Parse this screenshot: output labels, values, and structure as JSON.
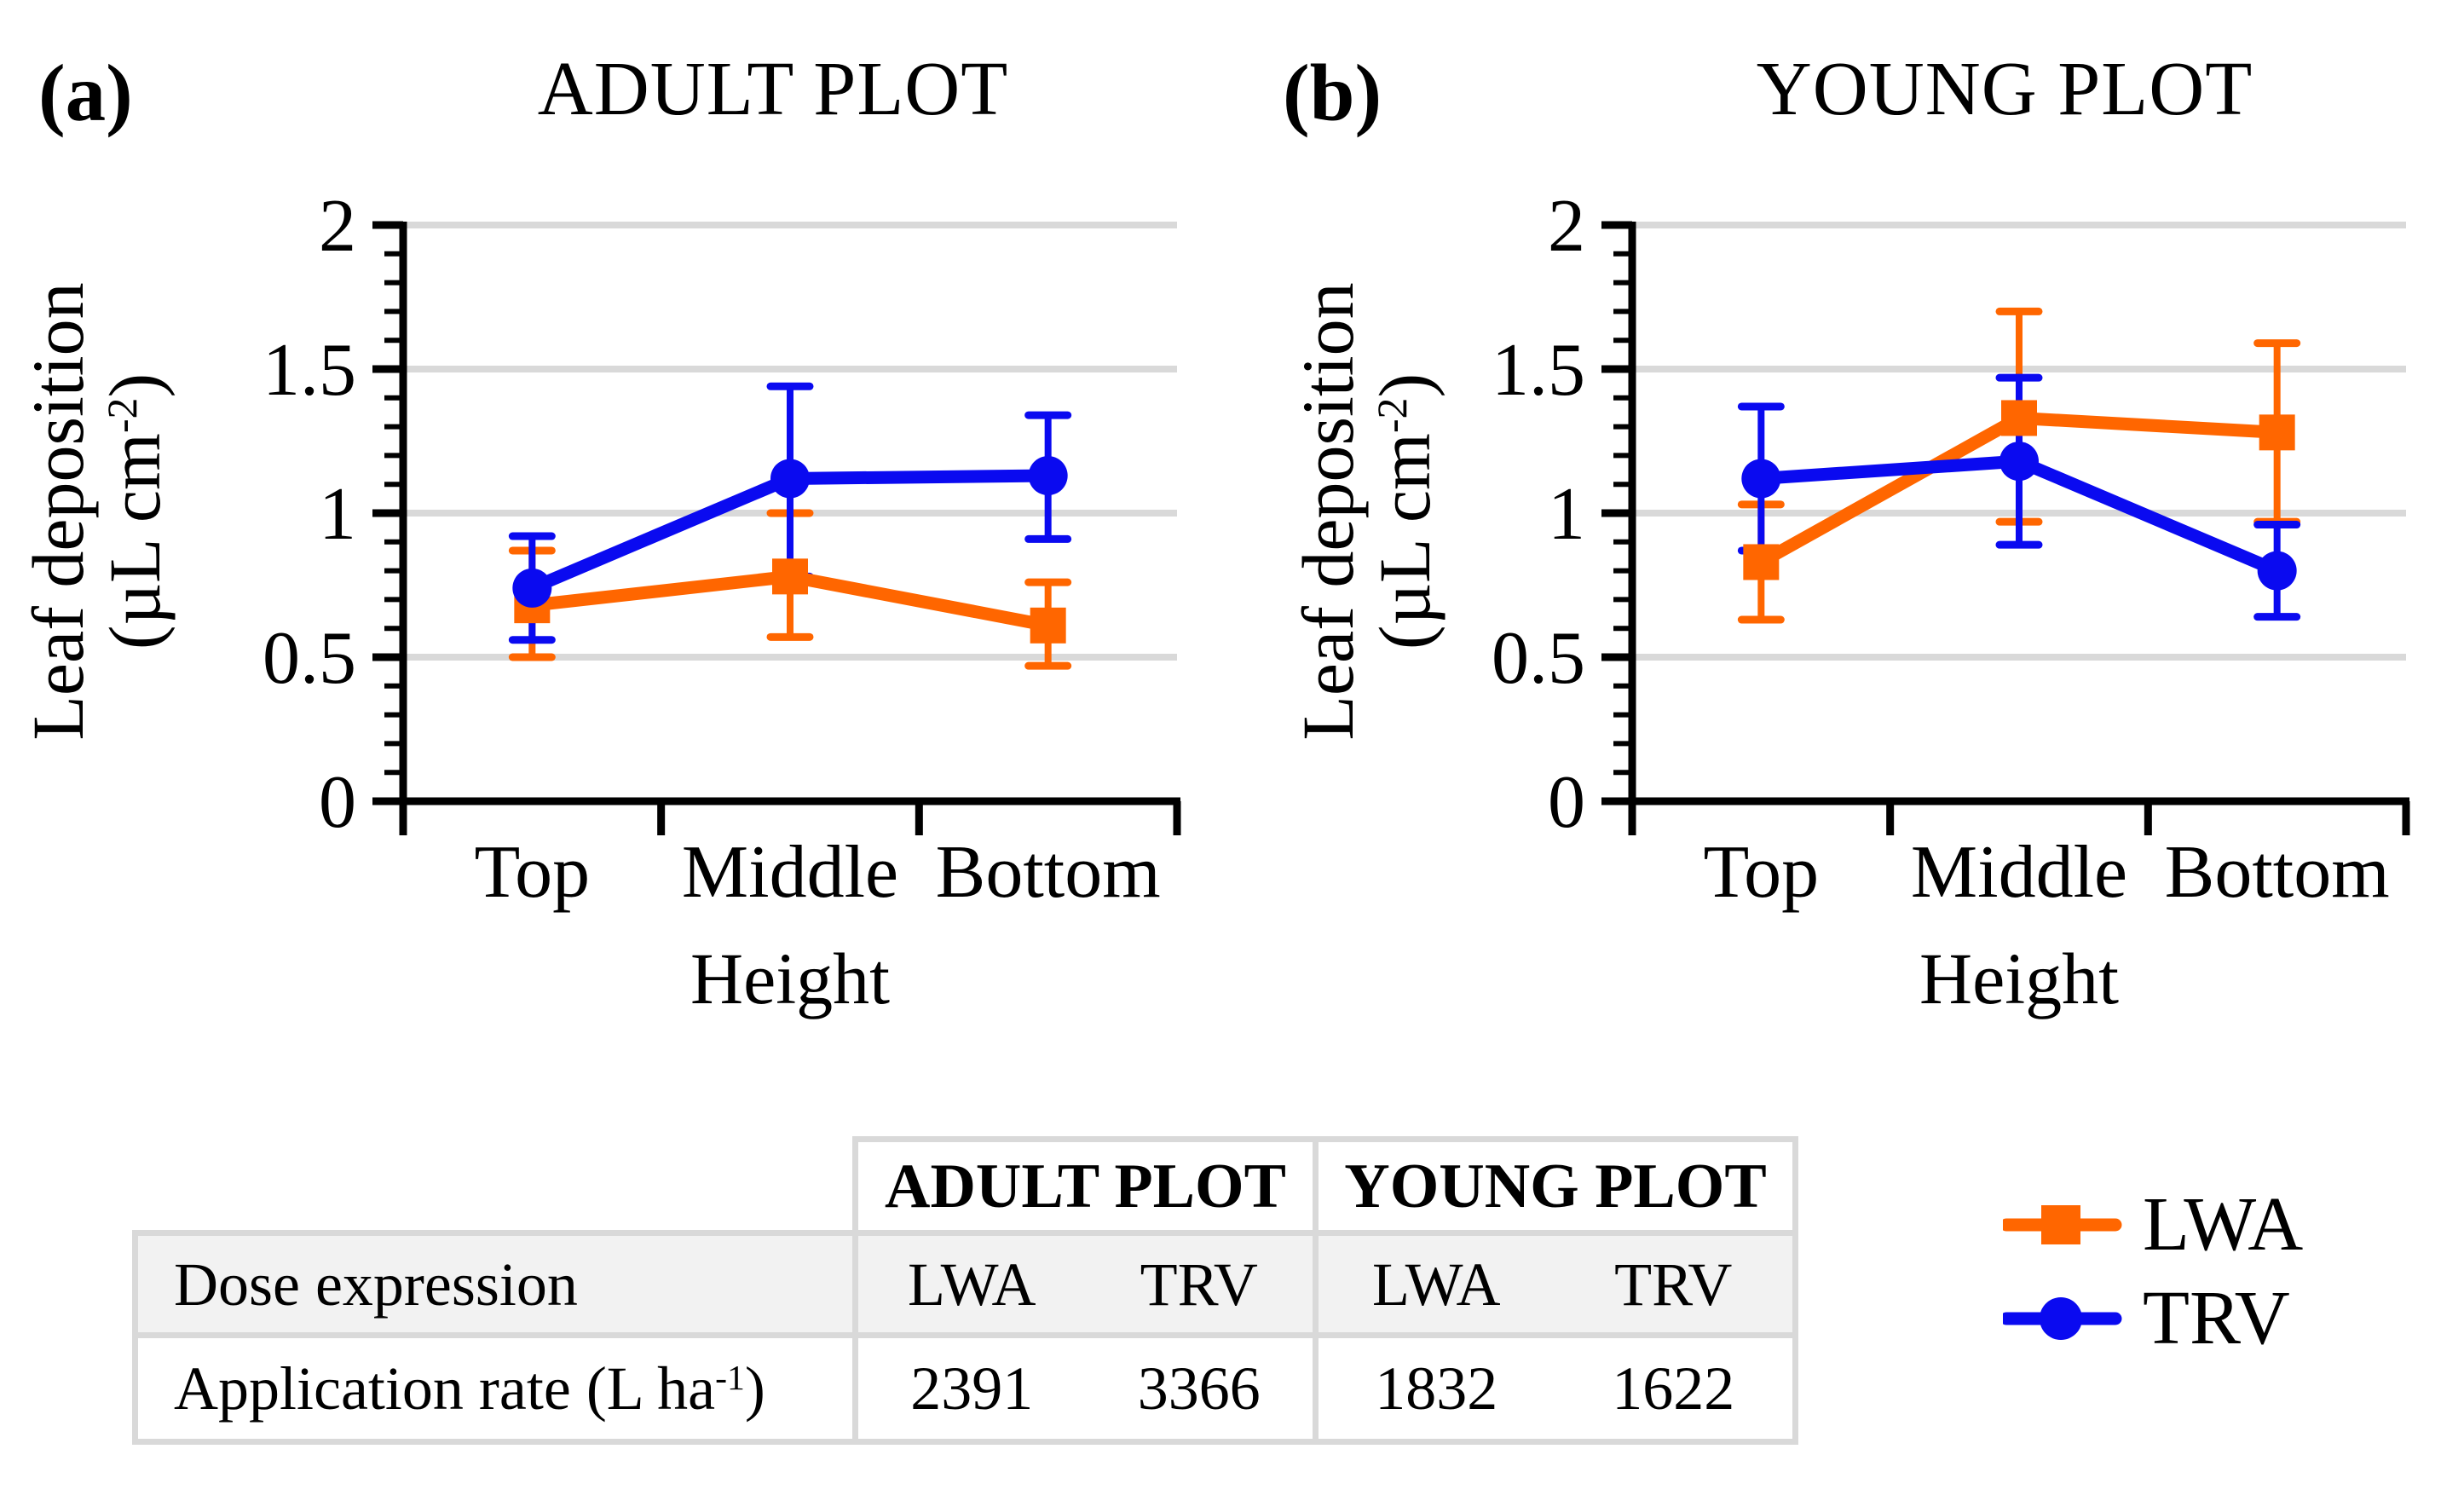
{
  "colors": {
    "orange": "#FF6600",
    "blue": "#0A0AF0",
    "grid": "#D9D9D9",
    "table_border": "#D9D9D9",
    "row_bg": "#F2F2F2"
  },
  "panels": [
    {
      "tag": "(a)",
      "title": "ADULT PLOT",
      "ylabel_line1": "Leaf deposition",
      "unit_prefix": "(µL cm",
      "unit_sup": "-2",
      "unit_suffix": ")",
      "xlabel": "Height"
    },
    {
      "tag": "(b)",
      "title": "YOUNG PLOT",
      "ylabel_line1": "Leaf deposition",
      "unit_prefix": "(µL cm",
      "unit_sup": "-2",
      "unit_suffix": ")",
      "xlabel": "Height"
    }
  ],
  "chart_data": [
    {
      "type": "line",
      "panel": "a",
      "title": "ADULT PLOT",
      "xlabel": "Height",
      "ylabel": "Leaf deposition (µL cm-2)",
      "categories": [
        "Top",
        "Middle",
        "Bottom"
      ],
      "ylim": [
        0,
        2
      ],
      "ytick_step": 0.5,
      "yminor_step": 0.1,
      "ytick_labels": [
        "0",
        "0.5",
        "1",
        "1.5",
        "2"
      ],
      "grid": true,
      "legend_position": "none",
      "series": [
        {
          "name": "LWA",
          "color": "#FF6600",
          "marker": "square",
          "values": [
            0.68,
            0.78,
            0.61
          ],
          "err_lo": [
            0.5,
            0.57,
            0.47
          ],
          "err_hi": [
            0.87,
            1.0,
            0.76
          ]
        },
        {
          "name": "TRV",
          "color": "#0A0AF0",
          "marker": "circle",
          "values": [
            0.74,
            1.12,
            1.13
          ],
          "err_lo": [
            0.56,
            0.78,
            0.91
          ],
          "err_hi": [
            0.92,
            1.44,
            1.34
          ]
        }
      ]
    },
    {
      "type": "line",
      "panel": "b",
      "title": "YOUNG PLOT",
      "xlabel": "Height",
      "ylabel": "Leaf deposition (µL cm-2)",
      "categories": [
        "Top",
        "Middle",
        "Bottom"
      ],
      "ylim": [
        0,
        2
      ],
      "ytick_step": 0.5,
      "yminor_step": 0.1,
      "ytick_labels": [
        "0",
        "0.5",
        "1",
        "1.5",
        "2"
      ],
      "grid": true,
      "legend_position": "none",
      "series": [
        {
          "name": "LWA",
          "color": "#FF6600",
          "marker": "square",
          "values": [
            0.83,
            1.33,
            1.28
          ],
          "err_lo": [
            0.63,
            0.97,
            0.97
          ],
          "err_hi": [
            1.03,
            1.7,
            1.59
          ]
        },
        {
          "name": "TRV",
          "color": "#0A0AF0",
          "marker": "circle",
          "values": [
            1.12,
            1.18,
            0.8
          ],
          "err_lo": [
            0.87,
            0.89,
            0.64
          ],
          "err_hi": [
            1.37,
            1.47,
            0.96
          ]
        }
      ]
    }
  ],
  "table": {
    "group_headers": [
      "ADULT PLOT",
      "YOUNG PLOT"
    ],
    "dose_row": {
      "label": "Dose expression",
      "cells": [
        "LWA",
        "TRV",
        "LWA",
        "TRV"
      ]
    },
    "rate_row": {
      "label_prefix": "Application rate (L ha",
      "label_sup": "-1",
      "label_suffix": ")",
      "cells": [
        "2391",
        "3366",
        "1832",
        "1622"
      ]
    }
  },
  "legend": {
    "items": [
      {
        "label": "LWA",
        "marker": "square",
        "color": "#FF6600"
      },
      {
        "label": "TRV",
        "marker": "circle",
        "color": "#0A0AF0"
      }
    ]
  }
}
